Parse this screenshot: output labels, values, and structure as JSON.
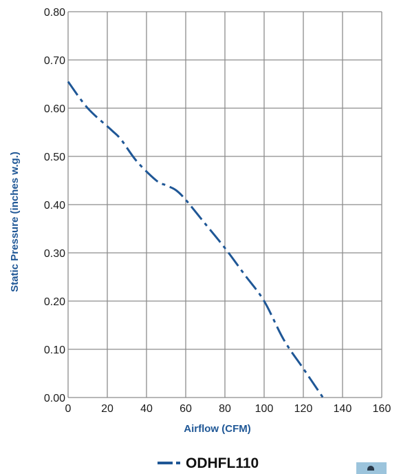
{
  "chart_data": {
    "type": "line",
    "title": "",
    "xlabel": "Airflow (CFM)",
    "ylabel": "Static Pressure (inches w.g.)",
    "xlim": [
      0,
      160
    ],
    "ylim": [
      0,
      0.8
    ],
    "x_ticks": [
      "0",
      "20",
      "40",
      "60",
      "80",
      "100",
      "120",
      "140",
      "160"
    ],
    "y_ticks": [
      "0.00",
      "0.10",
      "0.20",
      "0.30",
      "0.40",
      "0.50",
      "0.60",
      "0.70",
      "0.80"
    ],
    "grid": true,
    "legend_position": "bottom-center",
    "series": [
      {
        "name": "ODHFL110",
        "color": "#1f5796",
        "line_style": "dash-dot",
        "x": [
          0,
          10,
          22,
          27,
          35,
          45,
          50,
          55,
          60,
          70,
          80,
          90,
          100,
          110,
          120,
          130
        ],
        "y": [
          0.655,
          0.6,
          0.555,
          0.535,
          0.49,
          0.45,
          0.44,
          0.43,
          0.41,
          0.36,
          0.31,
          0.255,
          0.2,
          0.12,
          0.06,
          0.0
        ]
      }
    ]
  }
}
